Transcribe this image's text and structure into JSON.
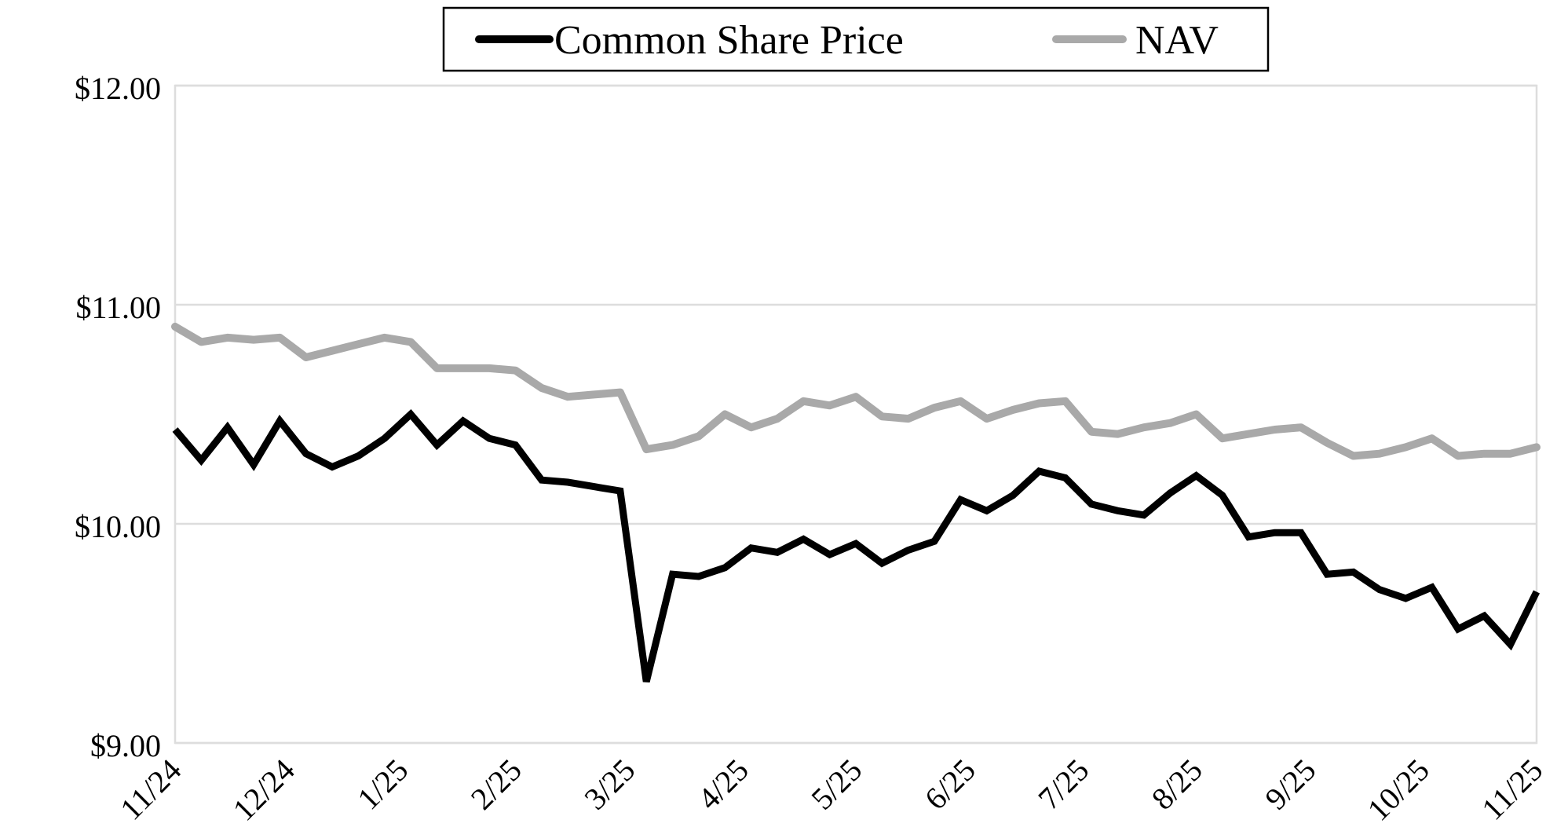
{
  "chart_data": {
    "type": "line",
    "title": "",
    "x_frequency": "weekly",
    "x_labels": [
      "11/24",
      "12/24",
      "1/25",
      "2/25",
      "3/25",
      "4/25",
      "5/25",
      "6/25",
      "7/25",
      "8/25",
      "9/25",
      "10/25",
      "11/25"
    ],
    "ylim": [
      9,
      12
    ],
    "yticks": [
      {
        "value": 12,
        "label": "$12.00"
      },
      {
        "value": 11,
        "label": "$11.00"
      },
      {
        "value": 10,
        "label": "$10.00"
      },
      {
        "value": 9,
        "label": "$9.00"
      }
    ],
    "grid": "horizontal",
    "legend_position": "top-center",
    "series": [
      {
        "name": "Common Share Price",
        "color": "#000000",
        "values": [
          10.43,
          10.29,
          10.44,
          10.27,
          10.47,
          10.32,
          10.26,
          10.31,
          10.39,
          10.5,
          10.36,
          10.47,
          10.39,
          10.36,
          10.2,
          10.19,
          10.17,
          10.15,
          9.28,
          9.77,
          9.76,
          9.8,
          9.89,
          9.87,
          9.93,
          9.86,
          9.91,
          9.82,
          9.88,
          9.92,
          10.11,
          10.06,
          10.13,
          10.24,
          10.21,
          10.09,
          10.06,
          10.04,
          10.14,
          10.22,
          10.13,
          9.94,
          9.96,
          9.96,
          9.77,
          9.78,
          9.7,
          9.66,
          9.71,
          9.52,
          9.58,
          9.45,
          9.69
        ]
      },
      {
        "name": "NAV",
        "color": "#a9a9a9",
        "values": [
          10.9,
          10.83,
          10.85,
          10.84,
          10.85,
          10.76,
          10.79,
          10.82,
          10.85,
          10.83,
          10.71,
          10.71,
          10.71,
          10.7,
          10.62,
          10.58,
          10.59,
          10.6,
          10.34,
          10.36,
          10.4,
          10.5,
          10.44,
          10.48,
          10.56,
          10.54,
          10.58,
          10.49,
          10.48,
          10.53,
          10.56,
          10.48,
          10.52,
          10.55,
          10.56,
          10.42,
          10.41,
          10.44,
          10.46,
          10.5,
          10.39,
          10.41,
          10.43,
          10.44,
          10.37,
          10.31,
          10.32,
          10.35,
          10.39,
          10.31,
          10.32,
          10.32,
          10.35
        ]
      }
    ]
  },
  "colors": {
    "background": "#ffffff",
    "grid": "#dddddd",
    "axis_text": "#000000",
    "legend_border": "#000000"
  }
}
